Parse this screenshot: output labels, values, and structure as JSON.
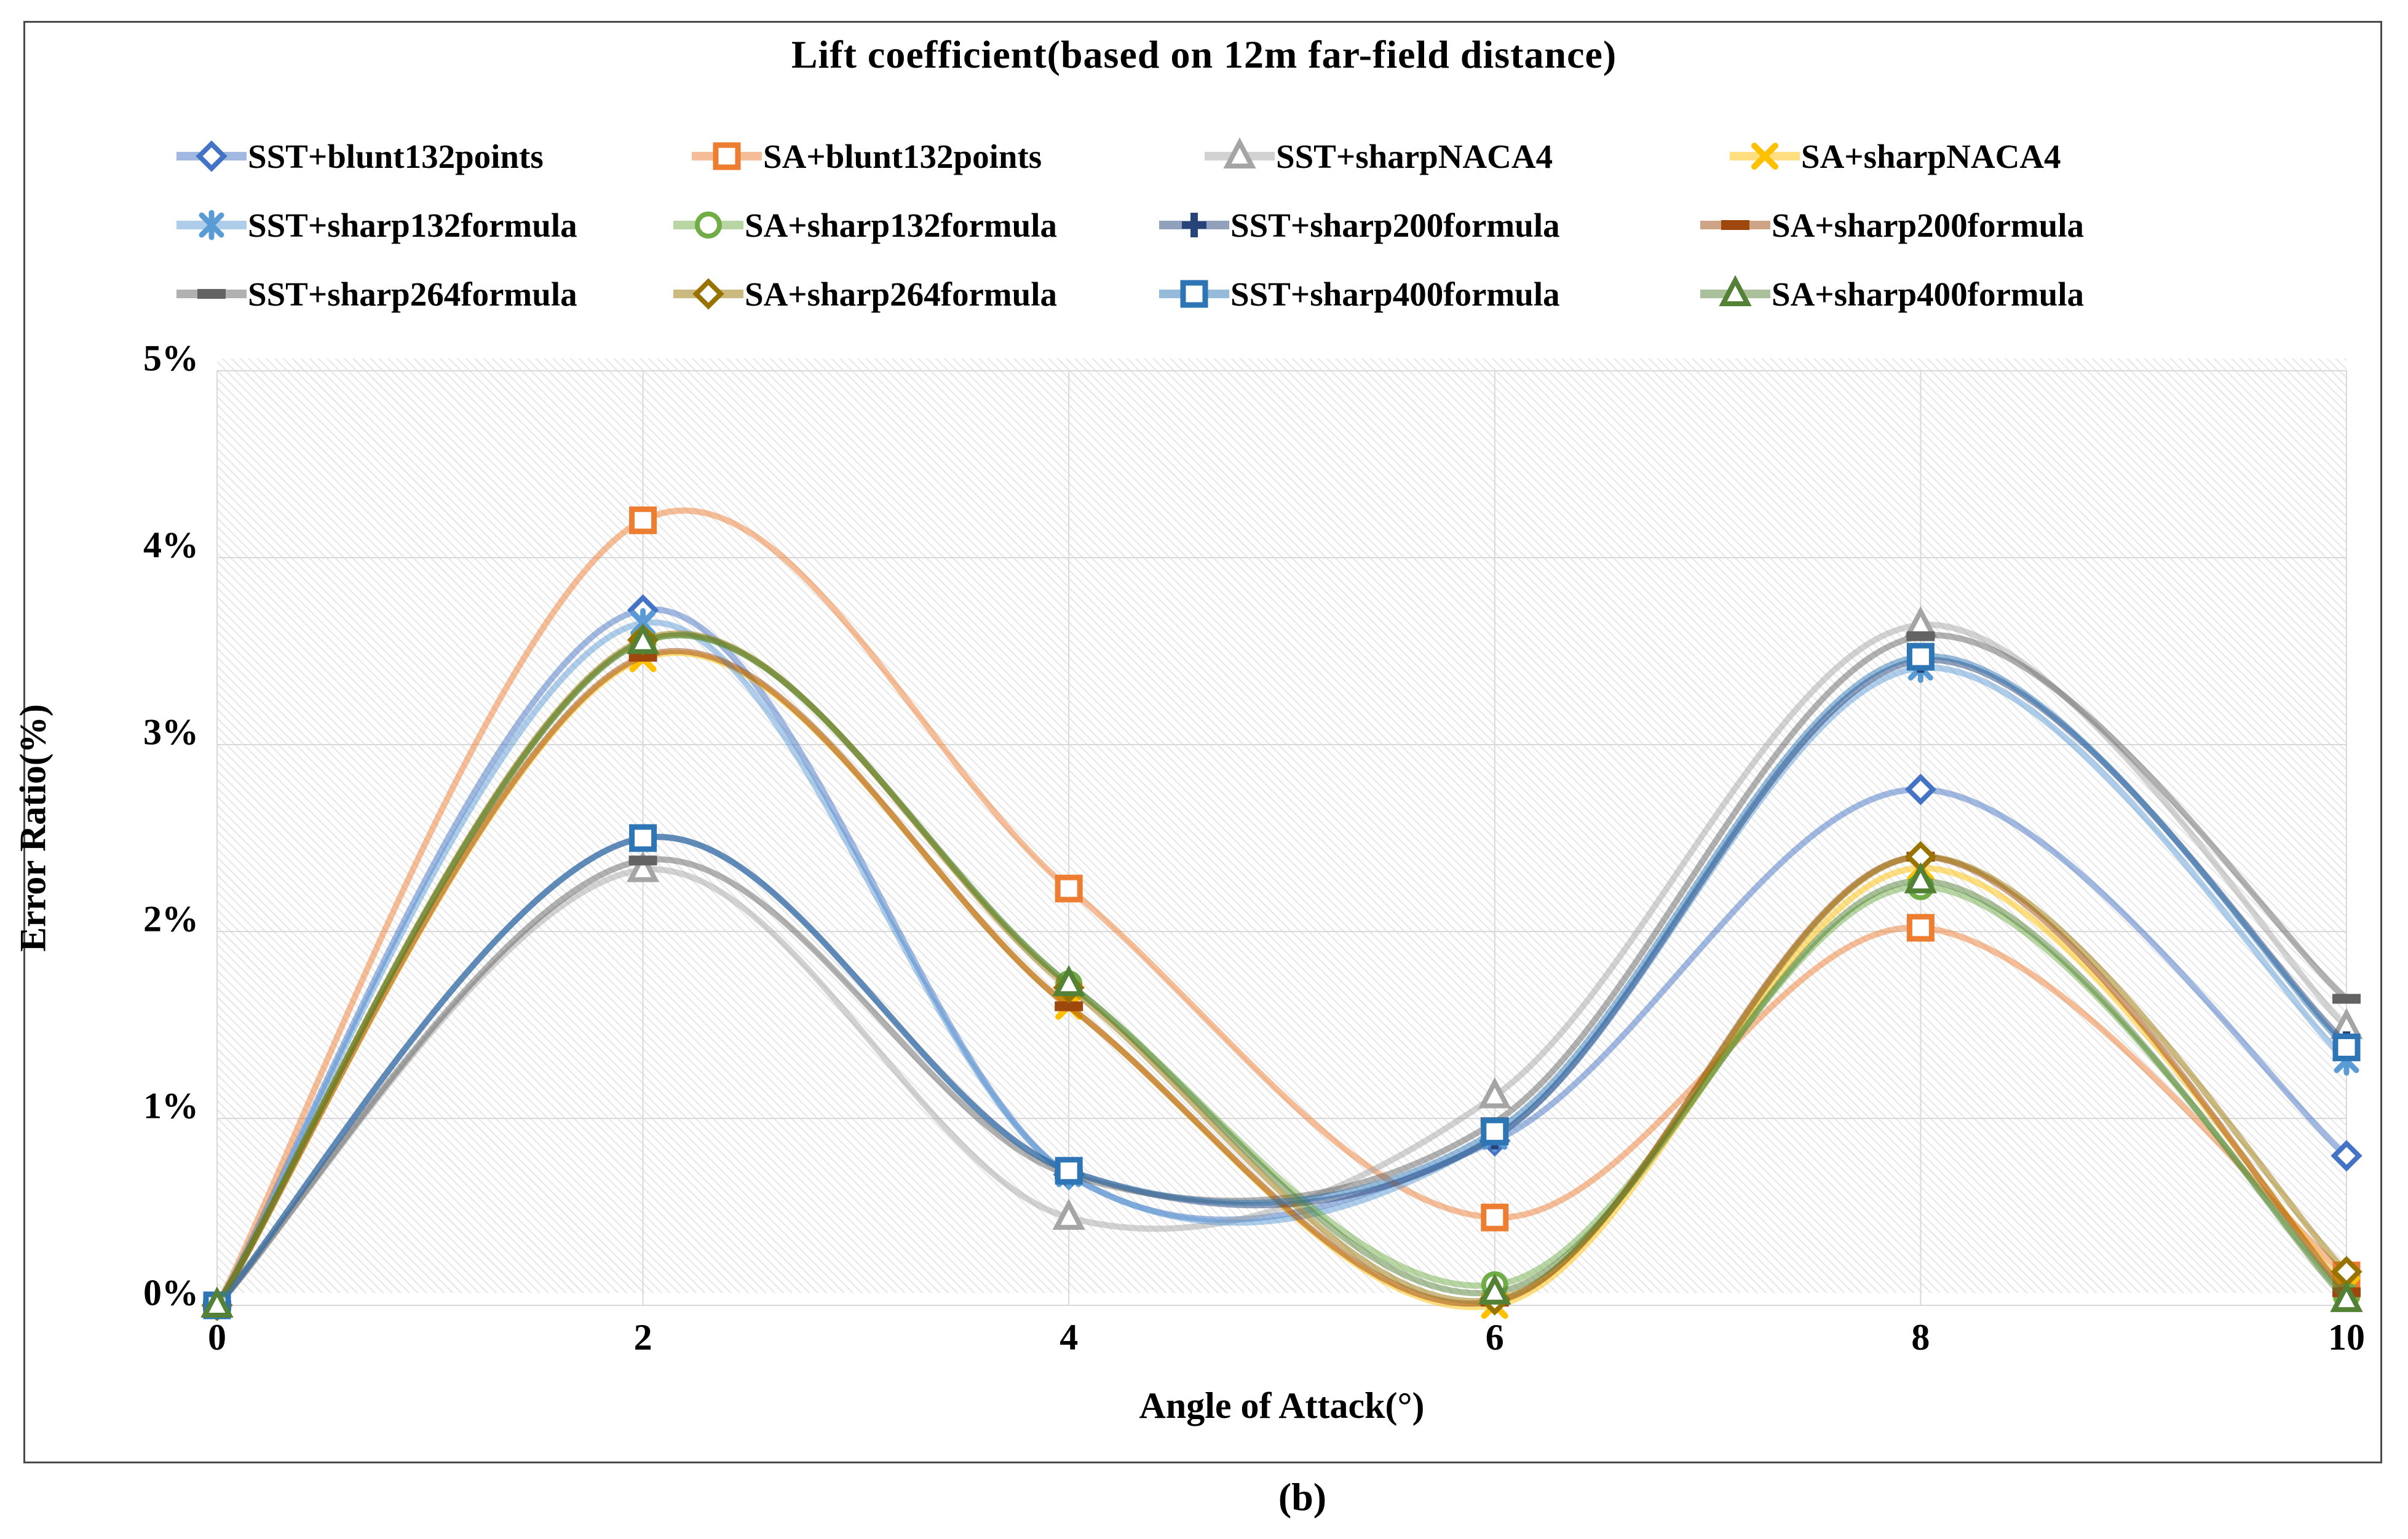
{
  "figure": {
    "caption": "(b)"
  },
  "chart_data": {
    "type": "line",
    "title": "Lift coefficient(based on 12m far-field distance)",
    "xlabel": "Angle of Attack(°)",
    "ylabel": "Error Ratio(%)",
    "x": [
      0,
      2,
      4,
      6,
      8,
      10
    ],
    "x_tick_labels": [
      "0",
      "2",
      "4",
      "6",
      "8",
      "10"
    ],
    "y_tick_labels": [
      "0%",
      "1%",
      "2%",
      "3%",
      "4%",
      "5%"
    ],
    "xlim": [
      0,
      10
    ],
    "ylim": [
      0,
      5
    ],
    "grid": true,
    "plot_background": "light diagonal hatch pattern",
    "legend_position": "top",
    "legend_rows": [
      [
        0,
        1,
        2,
        3
      ],
      [
        4,
        5,
        6,
        7
      ],
      [
        8,
        9,
        10,
        11
      ]
    ],
    "series": [
      {
        "name": "SST+blunt132points",
        "marker": "diamond",
        "color": "#4472C4",
        "values": [
          0,
          3.72,
          0.7,
          0.88,
          2.76,
          0.8
        ]
      },
      {
        "name": "SA+blunt132points",
        "marker": "square",
        "color": "#ED7D31",
        "values": [
          0,
          4.2,
          2.23,
          0.47,
          2.02,
          0.16
        ]
      },
      {
        "name": "SST+sharpNACA4",
        "marker": "triangle",
        "color": "#A5A5A5",
        "values": [
          0,
          2.33,
          0.47,
          1.12,
          3.64,
          1.49
        ]
      },
      {
        "name": "SA+sharpNACA4",
        "marker": "x",
        "color": "#FFC000",
        "values": [
          0,
          3.46,
          1.6,
          0.0,
          2.34,
          0.09
        ]
      },
      {
        "name": "SST+sharp132formula",
        "marker": "asterisk",
        "color": "#5B9BD5",
        "values": [
          0,
          3.65,
          0.7,
          0.9,
          3.41,
          1.31
        ]
      },
      {
        "name": "SA+sharp132formula",
        "marker": "circle",
        "color": "#70AD47",
        "values": [
          0,
          3.55,
          1.72,
          0.11,
          2.24,
          0.05
        ]
      },
      {
        "name": "SST+sharp200formula",
        "marker": "plus",
        "color": "#264478",
        "values": [
          0,
          2.5,
          0.72,
          0.9,
          3.45,
          1.4
        ]
      },
      {
        "name": "SA+sharp200formula",
        "marker": "dash",
        "color": "#9E480E",
        "values": [
          0,
          3.47,
          1.6,
          0.02,
          2.4,
          0.07
        ]
      },
      {
        "name": "SST+sharp264formula",
        "marker": "dash",
        "color": "#636363",
        "values": [
          0,
          2.38,
          0.7,
          0.98,
          3.58,
          1.64
        ]
      },
      {
        "name": "SA+sharp264formula",
        "marker": "diamond",
        "color": "#997300",
        "values": [
          0,
          3.56,
          1.7,
          0.03,
          2.4,
          0.18
        ]
      },
      {
        "name": "SST+sharp400formula",
        "marker": "square",
        "color": "#2E75B6",
        "values": [
          0,
          2.5,
          0.72,
          0.93,
          3.47,
          1.38
        ]
      },
      {
        "name": "SA+sharp400formula",
        "marker": "triangle",
        "color": "#538135",
        "values": [
          0,
          3.55,
          1.72,
          0.07,
          2.27,
          0.03
        ]
      }
    ],
    "style": {
      "gridline_color": "#D9D9D9",
      "line_opacity": 0.5,
      "line_width": 10,
      "marker_size": 20
    }
  }
}
